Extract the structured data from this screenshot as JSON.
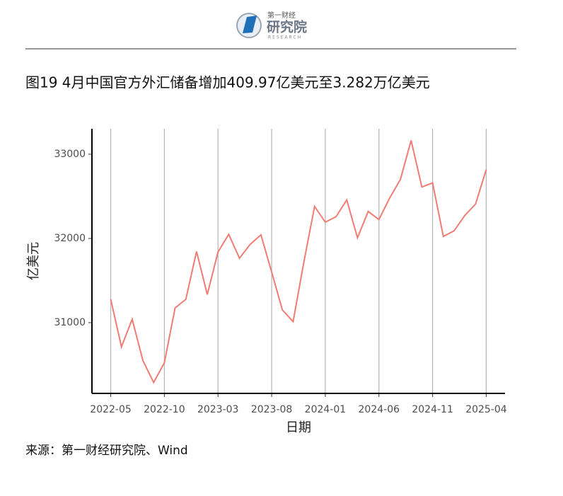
{
  "header": {
    "logo_top": "第一财经",
    "logo_main": "研究院",
    "logo_sub": "RESEARCH"
  },
  "chart_data": {
    "type": "line",
    "title": "图19 4月中国官方外汇储备增加409.97亿美元至3.282万亿美元",
    "xlabel": "日期",
    "ylabel": "亿美元",
    "source": "来源：第一财经研究院、Wind",
    "x": [
      "2022-05",
      "2022-06",
      "2022-07",
      "2022-08",
      "2022-09",
      "2022-10",
      "2022-11",
      "2022-12",
      "2023-01",
      "2023-02",
      "2023-03",
      "2023-04",
      "2023-05",
      "2023-06",
      "2023-07",
      "2023-08",
      "2023-09",
      "2023-10",
      "2023-11",
      "2023-12",
      "2024-01",
      "2024-02",
      "2024-03",
      "2024-04",
      "2024-05",
      "2024-06",
      "2024-07",
      "2024-08",
      "2024-09",
      "2024-10",
      "2024-11",
      "2024-12",
      "2025-01",
      "2025-02",
      "2025-03",
      "2025-04"
    ],
    "series": [
      {
        "name": "外汇储备",
        "color": "#f07c74",
        "values": [
          31278,
          30713,
          31041,
          30549,
          30290,
          30524,
          31175,
          31277,
          31845,
          31334,
          31839,
          32048,
          31765,
          31930,
          32043,
          31601,
          31151,
          31012,
          31718,
          32380,
          32193,
          32258,
          32457,
          32008,
          32320,
          32224,
          32480,
          32700,
          33164,
          32611,
          32659,
          32024,
          32090,
          32272,
          32407,
          32817
        ]
      }
    ],
    "xticks": [
      "2022-05",
      "2022-10",
      "2023-03",
      "2023-08",
      "2024-01",
      "2024-06",
      "2024-11",
      "2025-04"
    ],
    "ylim": [
      30160,
      33302
    ],
    "yticks": [
      31000,
      32000,
      33000
    ],
    "grid": "x"
  }
}
